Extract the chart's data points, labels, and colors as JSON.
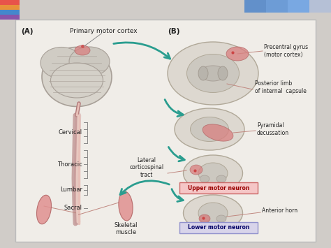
{
  "bg_outer": "#d0ccc8",
  "bg_inner": "#f0ede8",
  "border_color": "#bbbbbb",
  "label_A": "(A)",
  "label_B": "(B)",
  "label_primary_motor": "Primary motor cortex",
  "label_precentral": "Precentral gyrus\n(motor cortex)",
  "label_posterior_limb": "Posterior limb\nof internal  capsule",
  "label_pyramidal": "Pyramidal\ndecussation",
  "label_lateral": "Lateral\ncorticospinal\ntract",
  "label_upper": "Upper motor neuron",
  "label_lower": "Lower motor neuron",
  "label_anterior": "Anterior horn",
  "label_cervical": "Cervical",
  "label_thoracic": "Thoracic",
  "label_lumbar": "Lumbar",
  "label_sacral": "Sacral",
  "label_skeletal": "Skeletal\nmuscle",
  "arrow_color": "#2a9d8f",
  "line_color": "#c08880",
  "upper_box_color": "#f5c6c6",
  "lower_box_color": "#d8d4ea",
  "upper_box_edge": "#cc6666",
  "lower_box_edge": "#9090cc",
  "text_color": "#222222",
  "spine_color_dark": "#b07878",
  "spine_color_light": "#e8c0b8",
  "highlight_pink": "#d98080",
  "highlight_light": "#e8b0a8",
  "cs_outer": "#ddd8d0",
  "cs_inner_gray": "#c8c0b8",
  "cs_edge": "#b0a898",
  "brain_base": "#ccc8c0",
  "brain_edge": "#a8a098",
  "rainbow_colors": [
    "#e8534a",
    "#e8913a",
    "#4488cc",
    "#8855aa"
  ],
  "gradient_top_colors": [
    "#cc3333",
    "#ff8800",
    "#2266bb",
    "#7733aa"
  ]
}
